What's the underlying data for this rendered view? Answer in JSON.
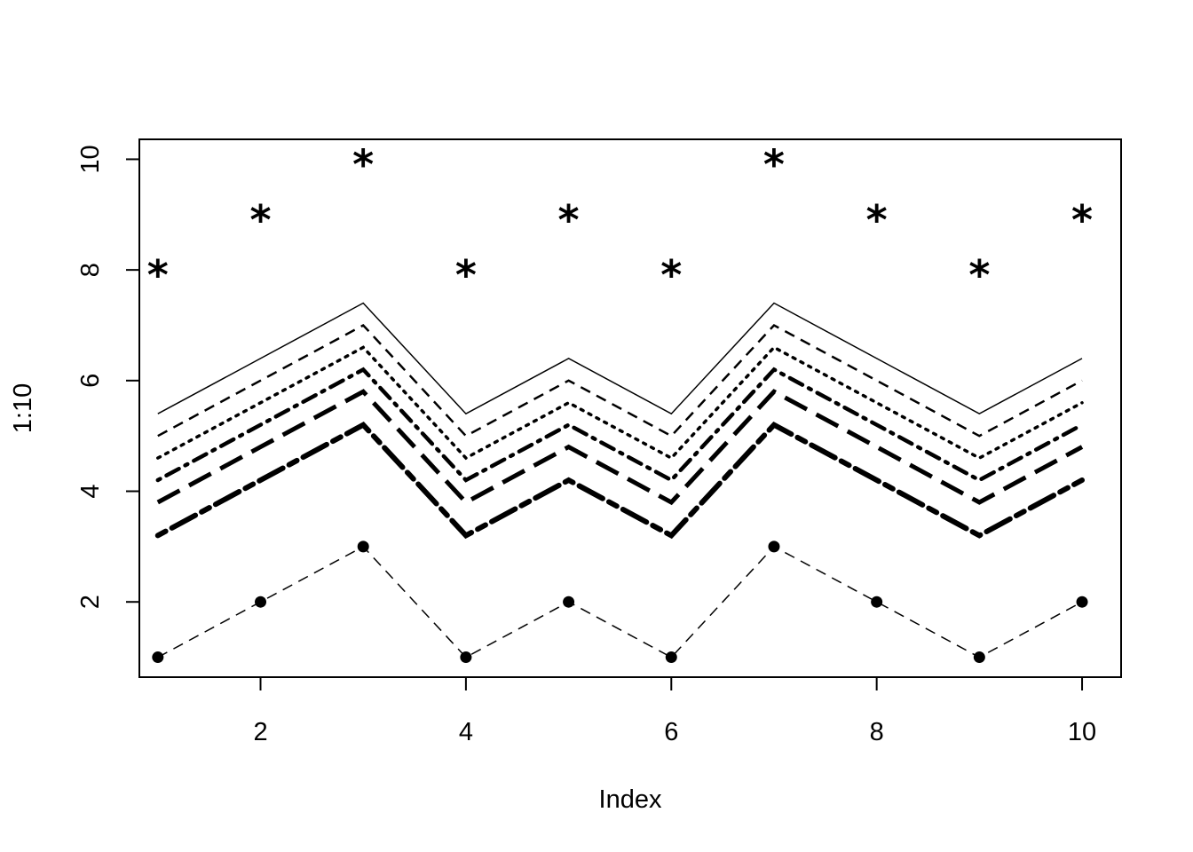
{
  "chart_data": {
    "type": "line",
    "xlabel": "Index",
    "ylabel": "1:10",
    "xlim": [
      0.82,
      10.38
    ],
    "ylim": [
      0.64,
      10.36
    ],
    "x": [
      1,
      2,
      3,
      4,
      5,
      6,
      7,
      8,
      9,
      10
    ],
    "x_ticks": [
      "2",
      "4",
      "6",
      "8",
      "10"
    ],
    "y_ticks": [
      "2",
      "4",
      "6",
      "8",
      "10"
    ],
    "grid": false,
    "legend": "none",
    "series": [
      {
        "style": "points-only",
        "marker": "asterisk",
        "values": [
          8,
          9,
          10,
          8,
          9,
          8,
          10,
          9,
          8,
          9
        ]
      },
      {
        "style": "solid",
        "values": [
          5.4,
          6.4,
          7.4,
          5.4,
          6.4,
          5.4,
          7.4,
          6.4,
          5.4,
          6.4
        ]
      },
      {
        "style": "dashed",
        "values": [
          5.0,
          6.0,
          7.0,
          5.0,
          6.0,
          5.0,
          7.0,
          6.0,
          5.0,
          6.0
        ]
      },
      {
        "style": "dotted",
        "values": [
          4.6,
          5.6,
          6.6,
          4.6,
          5.6,
          4.6,
          6.6,
          5.6,
          4.6,
          5.6
        ]
      },
      {
        "style": "dotdash",
        "values": [
          4.2,
          5.2,
          6.2,
          4.2,
          5.2,
          4.2,
          6.2,
          5.2,
          4.2,
          5.2
        ]
      },
      {
        "style": "longdash",
        "values": [
          3.8,
          4.8,
          5.8,
          3.8,
          4.8,
          3.8,
          5.8,
          4.8,
          3.8,
          4.8
        ]
      },
      {
        "style": "twodash",
        "values": [
          3.2,
          4.2,
          5.2,
          3.2,
          4.2,
          3.2,
          5.2,
          4.2,
          3.2,
          4.2
        ]
      },
      {
        "style": "dashed-with-points",
        "marker": "filled-circle",
        "values": [
          1,
          2,
          3,
          1,
          2,
          1,
          3,
          2,
          1,
          2
        ]
      }
    ]
  }
}
